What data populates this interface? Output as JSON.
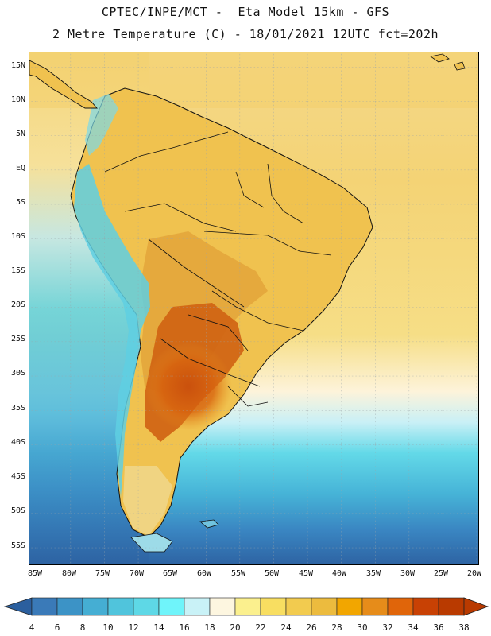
{
  "header": {
    "title_line1": "CPTEC/INPE/MCT -  Eta Model 15km - GFS",
    "title_line2": "2 Metre Temperature (C) - 18/01/2021 12UTC fct=202h"
  },
  "map": {
    "lat_ticks": [
      "15N",
      "10N",
      "5N",
      "EQ",
      "5S",
      "10S",
      "15S",
      "20S",
      "25S",
      "30S",
      "35S",
      "40S",
      "45S",
      "50S",
      "55S"
    ],
    "lon_ticks": [
      "85W",
      "80W",
      "75W",
      "70W",
      "65W",
      "60W",
      "55W",
      "50W",
      "45W",
      "40W",
      "35W",
      "30W",
      "25W",
      "20W"
    ]
  },
  "colorbar": {
    "labels": [
      "4",
      "6",
      "8",
      "10",
      "12",
      "14",
      "16",
      "18",
      "20",
      "22",
      "24",
      "26",
      "28",
      "30",
      "32",
      "34",
      "36",
      "38"
    ],
    "colors": [
      "#2b5f9e",
      "#3a7ab8",
      "#3c93c6",
      "#45aed3",
      "#50c4dc",
      "#5ed8e6",
      "#6ff4fa",
      "#c9f2f7",
      "#fdf6e0",
      "#fbf08e",
      "#f8de61",
      "#f2cb4f",
      "#ecbb3e",
      "#f2a600",
      "#e68c1a",
      "#e0650a",
      "#c84104",
      "#b93a00",
      "#8c2a00"
    ],
    "under_color": "#2b5f9e",
    "over_color": "#b93a00"
  }
}
